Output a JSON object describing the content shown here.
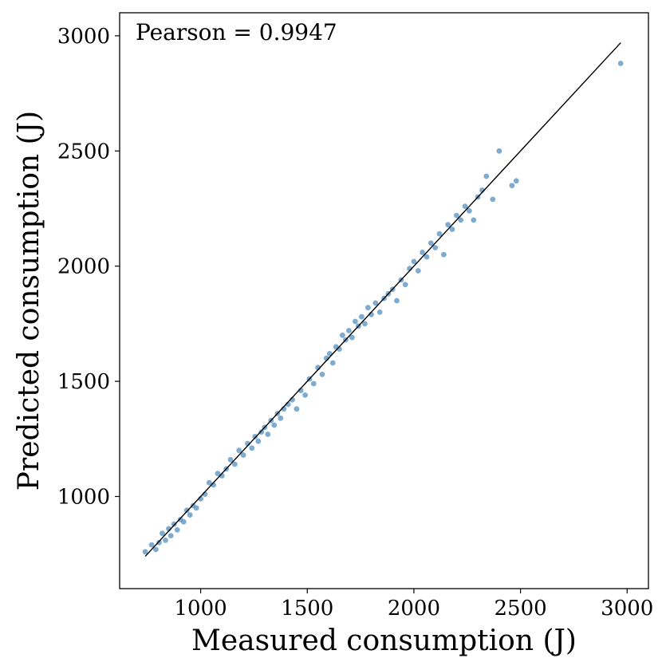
{
  "chart_data": {
    "type": "scatter",
    "xlabel": "Measured consumption (J)",
    "ylabel": "Predicted consumption (J)",
    "annotation": "Pearson = 0.9947",
    "xlim": [
      620,
      3100
    ],
    "ylim": [
      600,
      3100
    ],
    "xticks": [
      1000,
      1500,
      2000,
      2500,
      3000
    ],
    "yticks": [
      1000,
      1500,
      2000,
      2500,
      3000
    ],
    "xtick_labels": [
      "1000",
      "1500",
      "2000",
      "2500",
      "3000"
    ],
    "ytick_labels": [
      "1000",
      "1500",
      "2000",
      "2500",
      "3000"
    ],
    "identity_line": {
      "x": [
        740,
        2970
      ],
      "y": [
        740,
        2970
      ],
      "color": "#000000"
    },
    "point_color": "#5b93c2",
    "series": [
      {
        "x": [
          740,
          770,
          790,
          805,
          820,
          835,
          850,
          860,
          875,
          890,
          905,
          920,
          935,
          950,
          965,
          980,
          1000,
          1020,
          1040,
          1060,
          1080,
          1100,
          1120,
          1140,
          1160,
          1180,
          1200,
          1220,
          1240,
          1255,
          1270,
          1285,
          1300,
          1315,
          1330,
          1345,
          1360,
          1375,
          1390,
          1410,
          1430,
          1450,
          1470,
          1490,
          1510,
          1530,
          1550,
          1570,
          1590,
          1605,
          1620,
          1635,
          1650,
          1665,
          1680,
          1695,
          1710,
          1725,
          1740,
          1755,
          1770,
          1785,
          1800,
          1820,
          1840,
          1860,
          1880,
          1900,
          1920,
          1940,
          1960,
          1980,
          2000,
          2020,
          2040,
          2060,
          2080,
          2100,
          2120,
          2140,
          2160,
          2180,
          2200,
          2220,
          2240,
          2260,
          2280,
          2300,
          2320,
          2340,
          2370,
          2400,
          2460,
          2480,
          2970
        ],
        "y": [
          760,
          790,
          770,
          800,
          840,
          810,
          860,
          830,
          880,
          855,
          900,
          890,
          940,
          920,
          960,
          950,
          990,
          1010,
          1060,
          1050,
          1100,
          1090,
          1120,
          1160,
          1140,
          1200,
          1180,
          1230,
          1210,
          1260,
          1240,
          1280,
          1300,
          1270,
          1330,
          1310,
          1360,
          1340,
          1380,
          1400,
          1420,
          1380,
          1460,
          1440,
          1510,
          1490,
          1560,
          1530,
          1600,
          1620,
          1580,
          1650,
          1640,
          1700,
          1680,
          1720,
          1690,
          1760,
          1740,
          1780,
          1750,
          1820,
          1790,
          1840,
          1800,
          1860,
          1880,
          1900,
          1850,
          1940,
          1920,
          1990,
          2020,
          1980,
          2060,
          2040,
          2100,
          2080,
          2140,
          2050,
          2180,
          2160,
          2220,
          2200,
          2260,
          2240,
          2200,
          2300,
          2330,
          2390,
          2290,
          2500,
          2350,
          2370,
          2880
        ]
      }
    ]
  }
}
